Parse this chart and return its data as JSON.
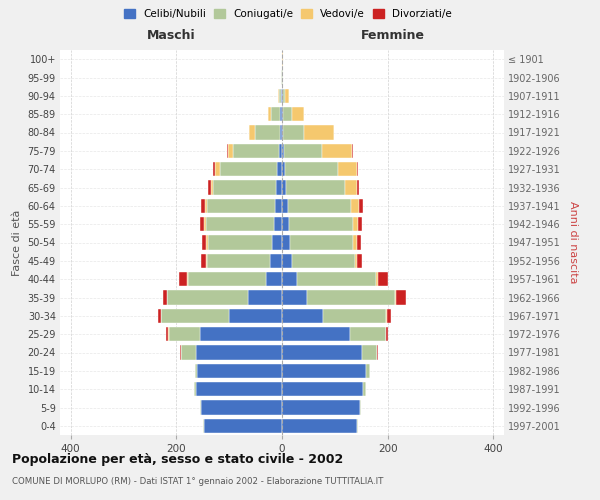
{
  "age_groups": [
    "0-4",
    "5-9",
    "10-14",
    "15-19",
    "20-24",
    "25-29",
    "30-34",
    "35-39",
    "40-44",
    "45-49",
    "50-54",
    "55-59",
    "60-64",
    "65-69",
    "70-74",
    "75-79",
    "80-84",
    "85-89",
    "90-94",
    "95-99",
    "100+"
  ],
  "birth_years": [
    "1997-2001",
    "1992-1996",
    "1987-1991",
    "1982-1986",
    "1977-1981",
    "1972-1976",
    "1967-1971",
    "1962-1966",
    "1957-1961",
    "1952-1956",
    "1947-1951",
    "1942-1946",
    "1937-1941",
    "1932-1936",
    "1927-1931",
    "1922-1926",
    "1917-1921",
    "1912-1916",
    "1907-1911",
    "1902-1906",
    "≤ 1901"
  ],
  "maschi": {
    "celibi": [
      148,
      153,
      162,
      160,
      163,
      156,
      100,
      65,
      30,
      22,
      18,
      16,
      14,
      12,
      10,
      6,
      4,
      3,
      1,
      0,
      0
    ],
    "coniugati": [
      2,
      2,
      4,
      4,
      28,
      58,
      128,
      152,
      148,
      120,
      122,
      128,
      128,
      118,
      108,
      86,
      48,
      18,
      4,
      1,
      0
    ],
    "vedovi": [
      0,
      0,
      0,
      0,
      0,
      1,
      1,
      1,
      2,
      2,
      3,
      4,
      4,
      4,
      8,
      10,
      10,
      6,
      2,
      0,
      0
    ],
    "divorziati": [
      0,
      0,
      0,
      0,
      2,
      4,
      6,
      8,
      14,
      10,
      8,
      8,
      8,
      6,
      4,
      2,
      0,
      0,
      0,
      0,
      0
    ]
  },
  "femmine": {
    "nubili": [
      142,
      148,
      154,
      158,
      152,
      128,
      78,
      48,
      28,
      18,
      16,
      14,
      12,
      8,
      6,
      4,
      2,
      2,
      1,
      0,
      0
    ],
    "coniugate": [
      2,
      2,
      4,
      8,
      28,
      68,
      118,
      166,
      150,
      120,
      118,
      120,
      118,
      112,
      100,
      72,
      40,
      16,
      4,
      1,
      0
    ],
    "vedove": [
      0,
      0,
      0,
      0,
      0,
      1,
      2,
      2,
      4,
      4,
      8,
      10,
      16,
      22,
      36,
      56,
      56,
      24,
      8,
      1,
      1
    ],
    "divorziate": [
      0,
      0,
      0,
      0,
      2,
      4,
      8,
      18,
      18,
      10,
      8,
      8,
      8,
      4,
      2,
      2,
      0,
      0,
      0,
      0,
      0
    ]
  },
  "colors": {
    "celibi": "#4472c4",
    "coniugati": "#b2c89a",
    "vedovi": "#f5c86e",
    "divorziati": "#cc2222"
  },
  "title": "Popolazione per età, sesso e stato civile - 2002",
  "subtitle": "COMUNE DI MORLUPO (RM) - Dati ISTAT 1° gennaio 2002 - Elaborazione TUTTITALIA.IT",
  "xlabel_left": "Maschi",
  "xlabel_right": "Femmine",
  "ylabel_left": "Fasce di età",
  "ylabel_right": "Anni di nascita",
  "xlim": 420,
  "background_color": "#f0f0f0",
  "bar_bg": "#ffffff",
  "legend_labels": [
    "Celibi/Nubili",
    "Coniugati/e",
    "Vedovi/e",
    "Divorziati/e"
  ]
}
